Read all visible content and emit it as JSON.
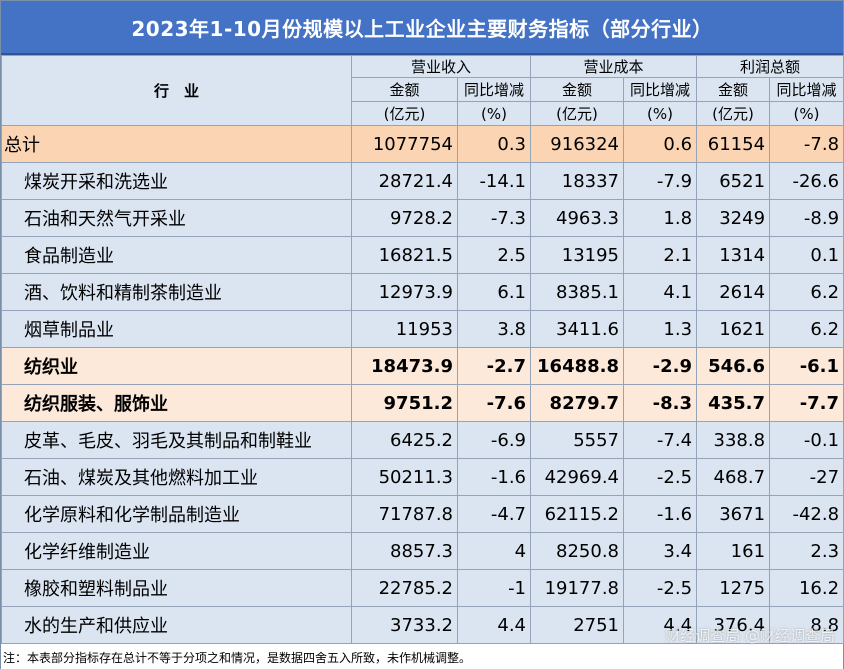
{
  "title": "2023年1-10月份规模以上工业企业主要财务指标（部分行业）",
  "header": {
    "industry": "行　业",
    "groups": [
      "营业收入",
      "营业成本",
      "利润总额"
    ],
    "sub_amount": "金额",
    "sub_amount_unit": "(亿元)",
    "sub_yoy": "同比增减",
    "sub_yoy_unit": "(%)"
  },
  "rows": [
    {
      "name": "总计",
      "v": [
        "1077754",
        "0.3",
        "916324",
        "0.6",
        "61154",
        "-7.8"
      ]
    },
    {
      "name": "煤炭开采和洗选业",
      "v": [
        "28721.4",
        "-14.1",
        "18337",
        "-7.9",
        "6521",
        "-26.6"
      ]
    },
    {
      "name": "石油和天然气开采业",
      "v": [
        "9728.2",
        "-7.3",
        "4963.3",
        "1.8",
        "3249",
        "-8.9"
      ]
    },
    {
      "name": "食品制造业",
      "v": [
        "16821.5",
        "2.5",
        "13195",
        "2.1",
        "1314",
        "0.1"
      ]
    },
    {
      "name": "酒、饮料和精制茶制造业",
      "v": [
        "12973.9",
        "6.1",
        "8385.1",
        "4.1",
        "2614",
        "6.2"
      ]
    },
    {
      "name": "烟草制品业",
      "v": [
        "11953",
        "3.8",
        "3411.6",
        "1.3",
        "1621",
        "6.2"
      ]
    },
    {
      "name": "纺织业",
      "v": [
        "18473.9",
        "-2.7",
        "16488.8",
        "-2.9",
        "546.6",
        "-6.1"
      ]
    },
    {
      "name": "纺织服装、服饰业",
      "v": [
        "9751.2",
        "-7.6",
        "8279.7",
        "-8.3",
        "435.7",
        "-7.7"
      ]
    },
    {
      "name": "皮革、毛皮、羽毛及其制品和制鞋业",
      "v": [
        "6425.2",
        "-6.9",
        "5557",
        "-7.4",
        "338.8",
        "-0.1"
      ]
    },
    {
      "name": "石油、煤炭及其他燃料加工业",
      "v": [
        "50211.3",
        "-1.6",
        "42969.4",
        "-2.5",
        "468.7",
        "-27"
      ]
    },
    {
      "name": "化学原料和化学制品制造业",
      "v": [
        "71787.8",
        "-4.7",
        "62115.2",
        "-1.6",
        "3671",
        "-42.8"
      ]
    },
    {
      "name": "化学纤维制造业",
      "v": [
        "8857.3",
        "4",
        "8250.8",
        "3.4",
        "161",
        "2.3"
      ]
    },
    {
      "name": "橡胶和塑料制品业",
      "v": [
        "22785.2",
        "-1",
        "19177.8",
        "-2.5",
        "1275",
        "16.2"
      ]
    },
    {
      "name": "水的生产和供应业",
      "v": [
        "3733.2",
        "4.4",
        "2751",
        "4.4",
        "376.4",
        "8.8"
      ]
    }
  ],
  "note": "注：本表部分指标存在总计不等于分项之和情况，是数据四舍五入所致，未作机械调整。",
  "watermark": "财经调查局 @财经调查局"
}
